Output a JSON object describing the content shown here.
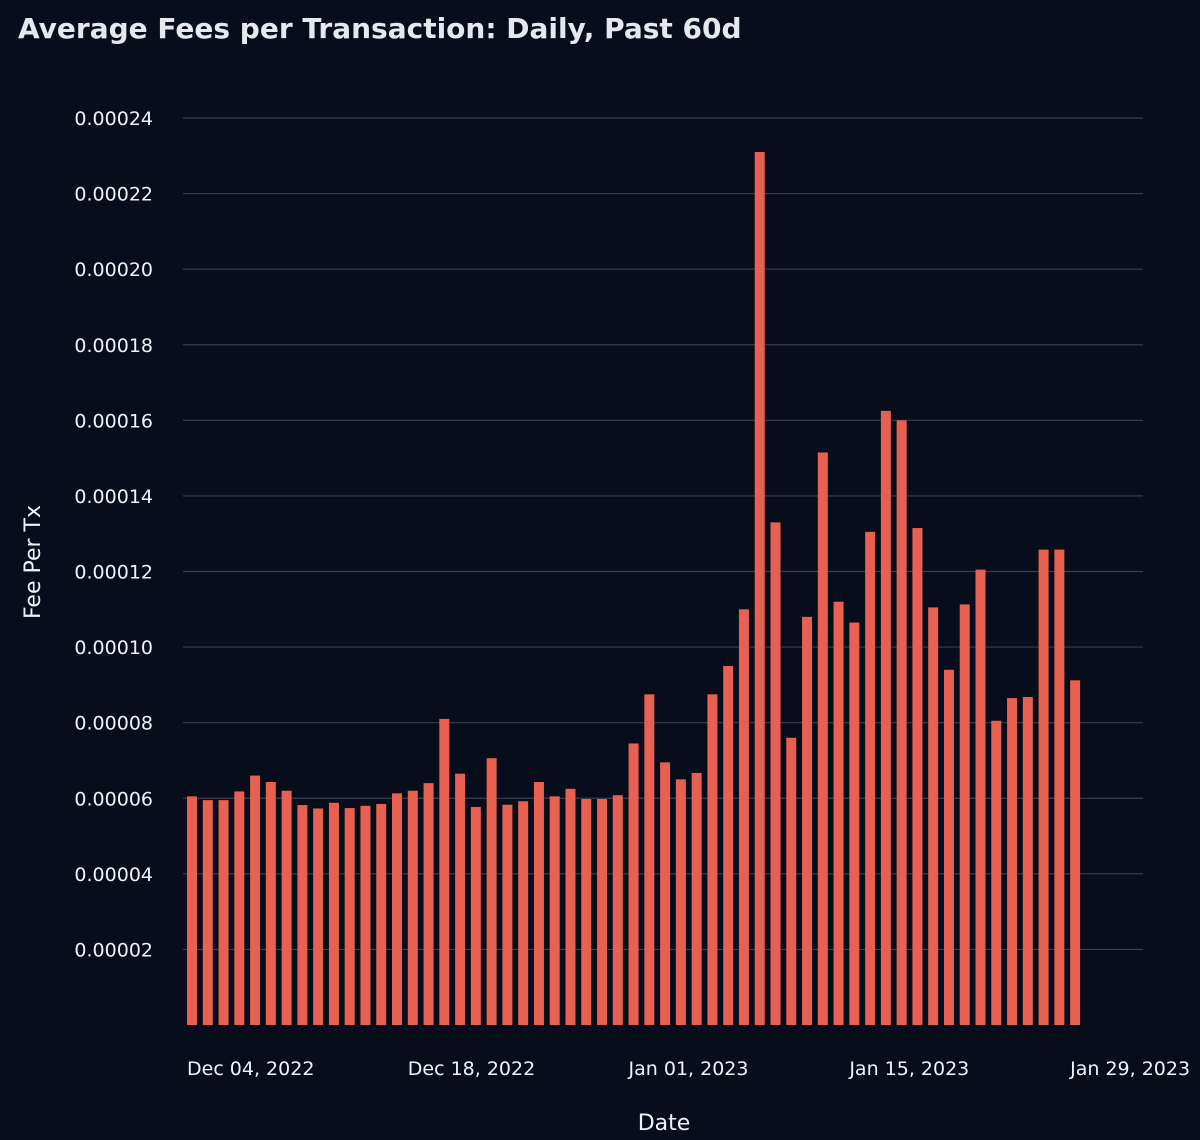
{
  "chart_data": {
    "type": "bar",
    "title": "Average Fees per Transaction: Daily, Past 60d",
    "xlabel": "Date",
    "ylabel": "Fee Per Tx",
    "ylim": [
      0,
      0.00024
    ],
    "y_ticks": [
      "0.00002",
      "0.00004",
      "0.00006",
      "0.00008",
      "0.00010",
      "0.00012",
      "0.00014",
      "0.00016",
      "0.00018",
      "0.00020",
      "0.00022",
      "0.00024"
    ],
    "y_tick_values": [
      2e-05,
      4e-05,
      6e-05,
      8e-05,
      0.0001,
      0.00012,
      0.00014,
      0.00016,
      0.00018,
      0.0002,
      0.00022,
      0.00024
    ],
    "x_ticks": [
      {
        "label": "Dec 04, 2022",
        "date": "2022-12-04"
      },
      {
        "label": "Dec 18, 2022",
        "date": "2022-12-18"
      },
      {
        "label": "Jan 01, 2023",
        "date": "2023-01-01"
      },
      {
        "label": "Jan 15, 2023",
        "date": "2023-01-15"
      },
      {
        "label": "Jan 29, 2023",
        "date": "2023-01-29"
      }
    ],
    "grid": true,
    "bar_color": "#e8604f",
    "x": [
      "2022-12-04",
      "2022-12-05",
      "2022-12-06",
      "2022-12-07",
      "2022-12-08",
      "2022-12-09",
      "2022-12-10",
      "2022-12-11",
      "2022-12-12",
      "2022-12-13",
      "2022-12-14",
      "2022-12-15",
      "2022-12-16",
      "2022-12-17",
      "2022-12-18",
      "2022-12-19",
      "2022-12-20",
      "2022-12-21",
      "2022-12-22",
      "2022-12-23",
      "2022-12-24",
      "2022-12-25",
      "2022-12-26",
      "2022-12-27",
      "2022-12-28",
      "2022-12-29",
      "2022-12-30",
      "2022-12-31",
      "2023-01-01",
      "2023-01-02",
      "2023-01-03",
      "2023-01-04",
      "2023-01-05",
      "2023-01-06",
      "2023-01-07",
      "2023-01-08",
      "2023-01-09",
      "2023-01-10",
      "2023-01-11",
      "2023-01-12",
      "2023-01-13",
      "2023-01-14",
      "2023-01-15",
      "2023-01-16",
      "2023-01-17",
      "2023-01-18",
      "2023-01-19",
      "2023-01-20",
      "2023-01-21",
      "2023-01-22",
      "2023-01-23",
      "2023-01-24",
      "2023-01-25",
      "2023-01-26",
      "2023-01-27",
      "2023-01-28",
      "2023-01-29"
    ],
    "values": [
      6.05e-05,
      5.95e-05,
      5.95e-05,
      6.18e-05,
      6.6e-05,
      6.43e-05,
      6.2e-05,
      5.82e-05,
      5.73e-05,
      5.88e-05,
      5.74e-05,
      5.8e-05,
      5.85e-05,
      6.13e-05,
      6.2e-05,
      6.4e-05,
      8.1e-05,
      6.65e-05,
      5.77e-05,
      7.06e-05,
      5.83e-05,
      5.92e-05,
      6.43e-05,
      6.05e-05,
      6.25e-05,
      5.98e-05,
      5.98e-05,
      6.08e-05,
      7.45e-05,
      8.75e-05,
      6.95e-05,
      6.5e-05,
      6.67e-05,
      8.75e-05,
      9.5e-05,
      0.00011,
      0.000231,
      0.000133,
      7.6e-05,
      0.000108,
      0.0001515,
      0.000112,
      0.0001065,
      0.0001305,
      0.0001625,
      0.00016,
      0.0001315,
      0.0001105,
      9.4e-05,
      0.0001113,
      0.0001205,
      8.05e-05,
      8.65e-05,
      8.68e-05,
      0.0001258,
      0.0001258,
      9.12e-05
    ]
  }
}
